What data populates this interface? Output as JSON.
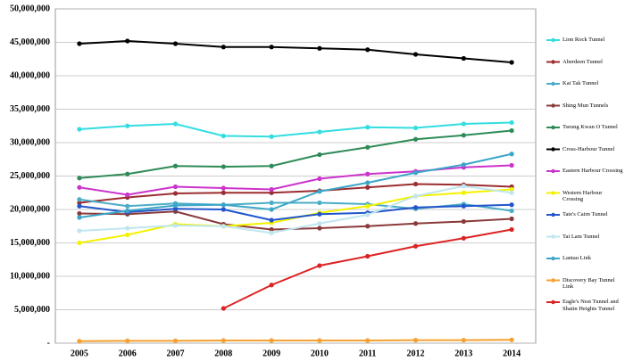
{
  "chart_data": {
    "type": "line",
    "categories": [
      "2005",
      "2006",
      "2007",
      "2008",
      "2009",
      "2010",
      "2011",
      "2012",
      "2013",
      "2014"
    ],
    "ylim": [
      0,
      50000000
    ],
    "yticks": [
      {
        "value": 0,
        "label": "-"
      },
      {
        "value": 5000000,
        "label": "5,000,000"
      },
      {
        "value": 10000000,
        "label": "10,000,000"
      },
      {
        "value": 15000000,
        "label": "15,000,000"
      },
      {
        "value": 20000000,
        "label": "20,000,000"
      },
      {
        "value": 25000000,
        "label": "25,000,000"
      },
      {
        "value": 30000000,
        "label": "30,000,000"
      },
      {
        "value": 35000000,
        "label": "35,000,000"
      },
      {
        "value": 40000000,
        "label": "40,000,000"
      },
      {
        "value": 45000000,
        "label": "45,000,000"
      },
      {
        "value": 50000000,
        "label": "50,000,000"
      }
    ],
    "grid": true,
    "legend": "right",
    "series": [
      {
        "name": "Lion Rock Tunnel",
        "color": "#33dde0",
        "values": [
          32000000,
          32500000,
          32800000,
          31000000,
          30900000,
          31600000,
          32300000,
          32200000,
          32800000,
          33000000
        ]
      },
      {
        "name": "Aberdeen Tunnel",
        "color": "#9b2d30",
        "values": [
          21000000,
          21800000,
          22400000,
          22500000,
          22500000,
          22800000,
          23300000,
          23800000,
          23700000,
          23400000
        ]
      },
      {
        "name": "Kai Tak Tunnel",
        "color": "#4bacc6",
        "values": [
          21500000,
          20500000,
          20900000,
          20700000,
          21000000,
          21000000,
          20800000,
          20100000,
          20800000,
          19800000
        ]
      },
      {
        "name": "Shing Mun Tunnels",
        "color": "#8b3a3a",
        "values": [
          19400000,
          19300000,
          19700000,
          17800000,
          17000000,
          17200000,
          17500000,
          17900000,
          18200000,
          18600000
        ]
      },
      {
        "name": "Tseung Kwan O Tunnel",
        "color": "#2e8b57",
        "values": [
          24700000,
          25300000,
          26500000,
          26400000,
          26500000,
          28200000,
          29300000,
          30500000,
          31100000,
          31800000
        ]
      },
      {
        "name": "Cross-Harbour Tunnel",
        "color": "#000000",
        "values": [
          44800000,
          45200000,
          44800000,
          44300000,
          44300000,
          44100000,
          43900000,
          43200000,
          42600000,
          42000000
        ]
      },
      {
        "name": "Eastern Harbour Crossing",
        "color": "#cc33cc",
        "values": [
          23300000,
          22200000,
          23400000,
          23200000,
          23000000,
          24600000,
          25300000,
          25700000,
          26300000,
          26600000
        ]
      },
      {
        "name": "Western Harbour Crossing",
        "color": "#f2f200",
        "values": [
          15000000,
          16200000,
          17800000,
          17500000,
          18000000,
          19500000,
          20500000,
          22000000,
          22500000,
          23000000
        ]
      },
      {
        "name": "Tate's Cairn Tunnel",
        "color": "#2255cc",
        "values": [
          20500000,
          19600000,
          20100000,
          20000000,
          18400000,
          19300000,
          19500000,
          20300000,
          20500000,
          20700000
        ]
      },
      {
        "name": "Tai Lam Tunnel",
        "color": "#bfe6ee",
        "values": [
          16800000,
          17200000,
          17600000,
          17500000,
          16500000,
          17900000,
          19200000,
          22000000,
          23500000,
          22500000
        ]
      },
      {
        "name": "Lantau Link",
        "color": "#3ba6c8",
        "values": [
          18800000,
          19800000,
          20600000,
          20700000,
          20000000,
          22700000,
          24000000,
          25500000,
          26700000,
          28300000
        ]
      },
      {
        "name": "Discovery Bay Tunnel Link",
        "color": "#f5a030",
        "values": [
          300000,
          350000,
          350000,
          400000,
          400000,
          400000,
          400000,
          450000,
          450000,
          500000
        ]
      },
      {
        "name": "Eagle's Nest Tunnel and Shatin Heights Tunnel",
        "color": "#dd2222",
        "values": [
          null,
          null,
          null,
          5200000,
          8700000,
          11600000,
          13000000,
          14500000,
          15700000,
          17000000
        ]
      }
    ]
  }
}
